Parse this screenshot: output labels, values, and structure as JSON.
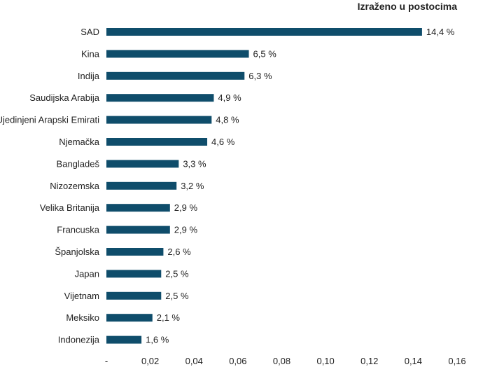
{
  "chart_data": {
    "type": "bar",
    "orientation": "horizontal",
    "unit_note": "Izraženo u postocima",
    "categories": [
      "SAD",
      "Kina",
      "Indija",
      "Saudijska Arabija",
      "Ujedinjeni Arapski Emirati",
      "Njemačka",
      "Bangladeš",
      "Nizozemska",
      "Velika Britanija",
      "Francuska",
      "Španjolska",
      "Japan",
      "Vijetnam",
      "Meksiko",
      "Indonezija"
    ],
    "values": [
      0.144,
      0.065,
      0.063,
      0.049,
      0.048,
      0.046,
      0.033,
      0.032,
      0.029,
      0.029,
      0.026,
      0.025,
      0.025,
      0.021,
      0.016
    ],
    "data_labels": [
      "14,4 %",
      "6,5 %",
      "6,3 %",
      "4,9 %",
      "4,8 %",
      "4,6 %",
      "3,3 %",
      "3,2 %",
      "2,9 %",
      "2,9 %",
      "2,6 %",
      "2,5 %",
      "2,5 %",
      "2,1 %",
      "1,6 %"
    ],
    "x_ticks": [
      0,
      0.02,
      0.04,
      0.06,
      0.08,
      0.1,
      0.12,
      0.14,
      0.16
    ],
    "x_tick_labels": [
      "-",
      "0,02",
      "0,04",
      "0,06",
      "0,08",
      "0,10",
      "0,12",
      "0,14",
      "0,16"
    ],
    "xlim": [
      0,
      0.16
    ],
    "grid": false,
    "bar_color": "#0f4d6b"
  }
}
